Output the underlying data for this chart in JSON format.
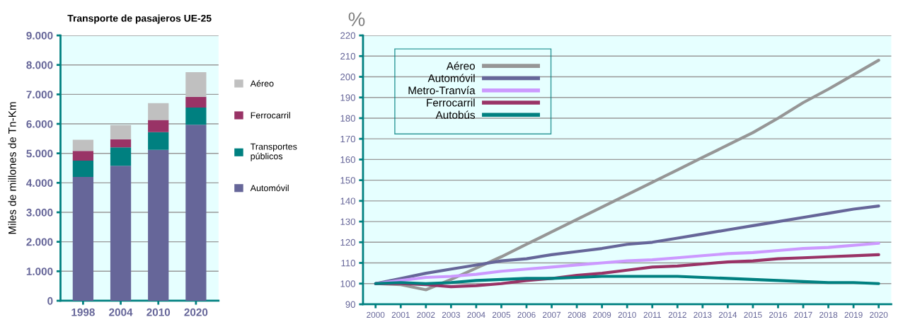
{
  "chart_data": [
    {
      "type": "bar",
      "title": "Transporte de pasajeros UE-25",
      "ylabel": "Miles de millones de Tn-Km",
      "stacked": true,
      "legend": "right",
      "grid": "y",
      "categories": [
        "1998",
        "2004",
        "2010",
        "2020"
      ],
      "ylim": [
        0,
        9000
      ],
      "yticks": [
        {
          "value": 0,
          "label": "0"
        },
        {
          "value": 1000,
          "label": "1.000"
        },
        {
          "value": 2000,
          "label": "2.000"
        },
        {
          "value": 3000,
          "label": "3.000"
        },
        {
          "value": 4000,
          "label": "4.000"
        },
        {
          "value": 5000,
          "label": "5.000"
        },
        {
          "value": 6000,
          "label": "6.000"
        },
        {
          "value": 7000,
          "label": "7.000"
        },
        {
          "value": 8000,
          "label": "8.000"
        },
        {
          "value": 9000,
          "label": "9.000"
        }
      ],
      "series": [
        {
          "name": "Automóvil",
          "color": "#666699",
          "values": [
            4200,
            4580,
            5120,
            5970
          ]
        },
        {
          "name": "Transportes\npúblicos",
          "color": "#008080",
          "values": [
            550,
            620,
            600,
            580
          ]
        },
        {
          "name": "Ferrocarril",
          "color": "#993366",
          "values": [
            330,
            280,
            410,
            370
          ]
        },
        {
          "name": "Aéreo",
          "color": "#c0c0c0",
          "values": [
            380,
            480,
            570,
            830
          ]
        }
      ]
    },
    {
      "type": "line",
      "ylabel": "%",
      "legend": "top left",
      "grid": "y",
      "categories": [
        "2000",
        "2001",
        "2002",
        "2003",
        "2004",
        "2005",
        "2006",
        "2007",
        "2008",
        "2009",
        "2010",
        "2011",
        "2012",
        "2013",
        "2014",
        "2015",
        "2016",
        "2017",
        "2018",
        "2019",
        "2020"
      ],
      "ylim": [
        90,
        220
      ],
      "yticks": [
        90,
        100,
        110,
        120,
        130,
        140,
        150,
        160,
        170,
        180,
        190,
        200,
        210,
        220
      ],
      "series": [
        {
          "name": "Aéreo",
          "color": "#969696",
          "values": [
            100,
            99.5,
            97,
            102,
            107.5,
            113,
            119,
            125,
            131,
            137,
            143,
            149,
            155,
            161,
            167,
            173,
            180,
            187.5,
            194,
            201,
            208
          ]
        },
        {
          "name": "Automóvil",
          "color": "#666699",
          "values": [
            100,
            102.5,
            105,
            107,
            109,
            111,
            112,
            114,
            115.5,
            117,
            119,
            120,
            122,
            124,
            126,
            128,
            130,
            132,
            134,
            136,
            137.5
          ]
        },
        {
          "name": "Metro-Tranvía",
          "color": "#cc99ff",
          "values": [
            100,
            101.5,
            103,
            103.5,
            104.5,
            106,
            107,
            108,
            109,
            110,
            111,
            111.5,
            112.5,
            113.5,
            114.5,
            115,
            116,
            117,
            117.5,
            118.5,
            119.5
          ]
        },
        {
          "name": "Ferrocarril",
          "color": "#993366",
          "values": [
            100,
            100,
            99.5,
            98.5,
            99,
            100,
            101.5,
            102.5,
            104,
            105,
            106.5,
            108,
            108.5,
            109.5,
            110.5,
            111,
            112,
            112.5,
            113,
            113.5,
            114
          ]
        },
        {
          "name": "Autobús",
          "color": "#008080",
          "values": [
            100,
            100.5,
            100,
            100.5,
            101.5,
            102,
            102.5,
            102.5,
            103,
            103.5,
            103.5,
            103.5,
            103.5,
            103,
            102.5,
            102,
            101.5,
            101,
            100.5,
            100.5,
            100
          ]
        }
      ]
    }
  ]
}
